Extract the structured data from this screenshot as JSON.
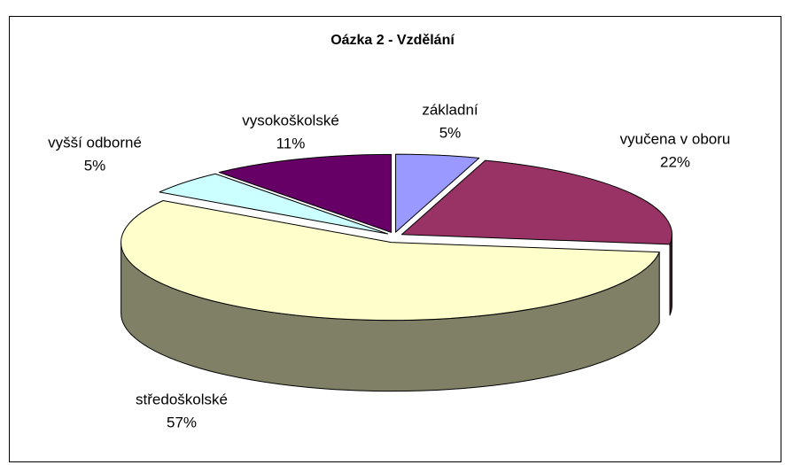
{
  "chart_data": {
    "type": "pie",
    "title": "Oázka 2 - Vzdělání",
    "categories": [
      "základní",
      "vyučena v oboru",
      "středoškolské",
      "vyšší odborné",
      "vysokoškolské"
    ],
    "values": [
      5,
      22,
      57,
      5,
      11
    ],
    "value_labels": [
      "5%",
      "22%",
      "57%",
      "5%",
      "11%"
    ],
    "colors": [
      "#9999ff",
      "#993366",
      "#ffffcc",
      "#ccffff",
      "#660066"
    ],
    "three_d": true,
    "exploded": true
  }
}
